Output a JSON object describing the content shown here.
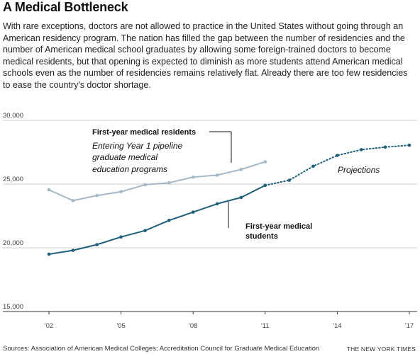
{
  "header": {
    "title": "A Medical Bottleneck",
    "intro": "With rare exceptions, doctors are not allowed to practice in the United States without going through an American residency program. The nation has filled the gap between the number of residencies and the number of American medical school graduates by allowing some foreign-trained doctors to become medical residents, but that opening is expected to diminish as more students attend American medical schools even as the number of residencies remains relatively flat. Already there are too few residencies to ease the country's doctor shortage."
  },
  "footer": {
    "source": "Sources: Association of American Medical Colleges; Accreditation Council for Graduate Medical Education",
    "credit": "THE NEW YORK TIMES"
  },
  "annotations": {
    "residents_title": "First-year medical residents",
    "residents_sub": [
      "Entering Year 1 pipeline",
      "graduate medical",
      "education programs"
    ],
    "students": [
      "First-year medical",
      "students"
    ],
    "projections": "Projections"
  },
  "colors": {
    "residents": "#a3b8c6",
    "students": "#1f5f7a"
  },
  "chart_data": {
    "type": "line",
    "title": "A Medical Bottleneck",
    "xlim": [
      2002,
      2017
    ],
    "ylim": [
      15000,
      30000
    ],
    "y_ticks": [
      {
        "value": 30000,
        "label": "30,000"
      },
      {
        "value": 25000,
        "label": "25,000"
      },
      {
        "value": 20000,
        "label": "20,000"
      },
      {
        "value": 15000,
        "label": "15,000"
      }
    ],
    "x_ticks": [
      {
        "value": 2002,
        "label": "'02"
      },
      {
        "value": 2005,
        "label": "'05"
      },
      {
        "value": 2008,
        "label": "'08"
      },
      {
        "value": 2011,
        "label": "'11"
      },
      {
        "value": 2014,
        "label": "'14"
      },
      {
        "value": 2017,
        "label": "'17"
      }
    ],
    "grid": "horizontal",
    "series": [
      {
        "name": "First-year medical residents",
        "x": [
          2002,
          2003,
          2004,
          2005,
          2006,
          2007,
          2008,
          2009,
          2010,
          2011
        ],
        "y": [
          24550,
          23700,
          24100,
          24400,
          24950,
          25100,
          25550,
          25700,
          26150,
          26750
        ]
      },
      {
        "name": "First-year medical students",
        "x": [
          2002,
          2003,
          2004,
          2005,
          2006,
          2007,
          2008,
          2009,
          2010,
          2011
        ],
        "y": [
          19500,
          19800,
          20250,
          20850,
          21350,
          22150,
          22800,
          23450,
          23950,
          24900
        ]
      },
      {
        "name": "Projections",
        "x": [
          2011,
          2012,
          2013,
          2014,
          2015,
          2016,
          2017
        ],
        "y": [
          24900,
          25300,
          26400,
          27250,
          27700,
          27900,
          28050
        ]
      }
    ]
  }
}
